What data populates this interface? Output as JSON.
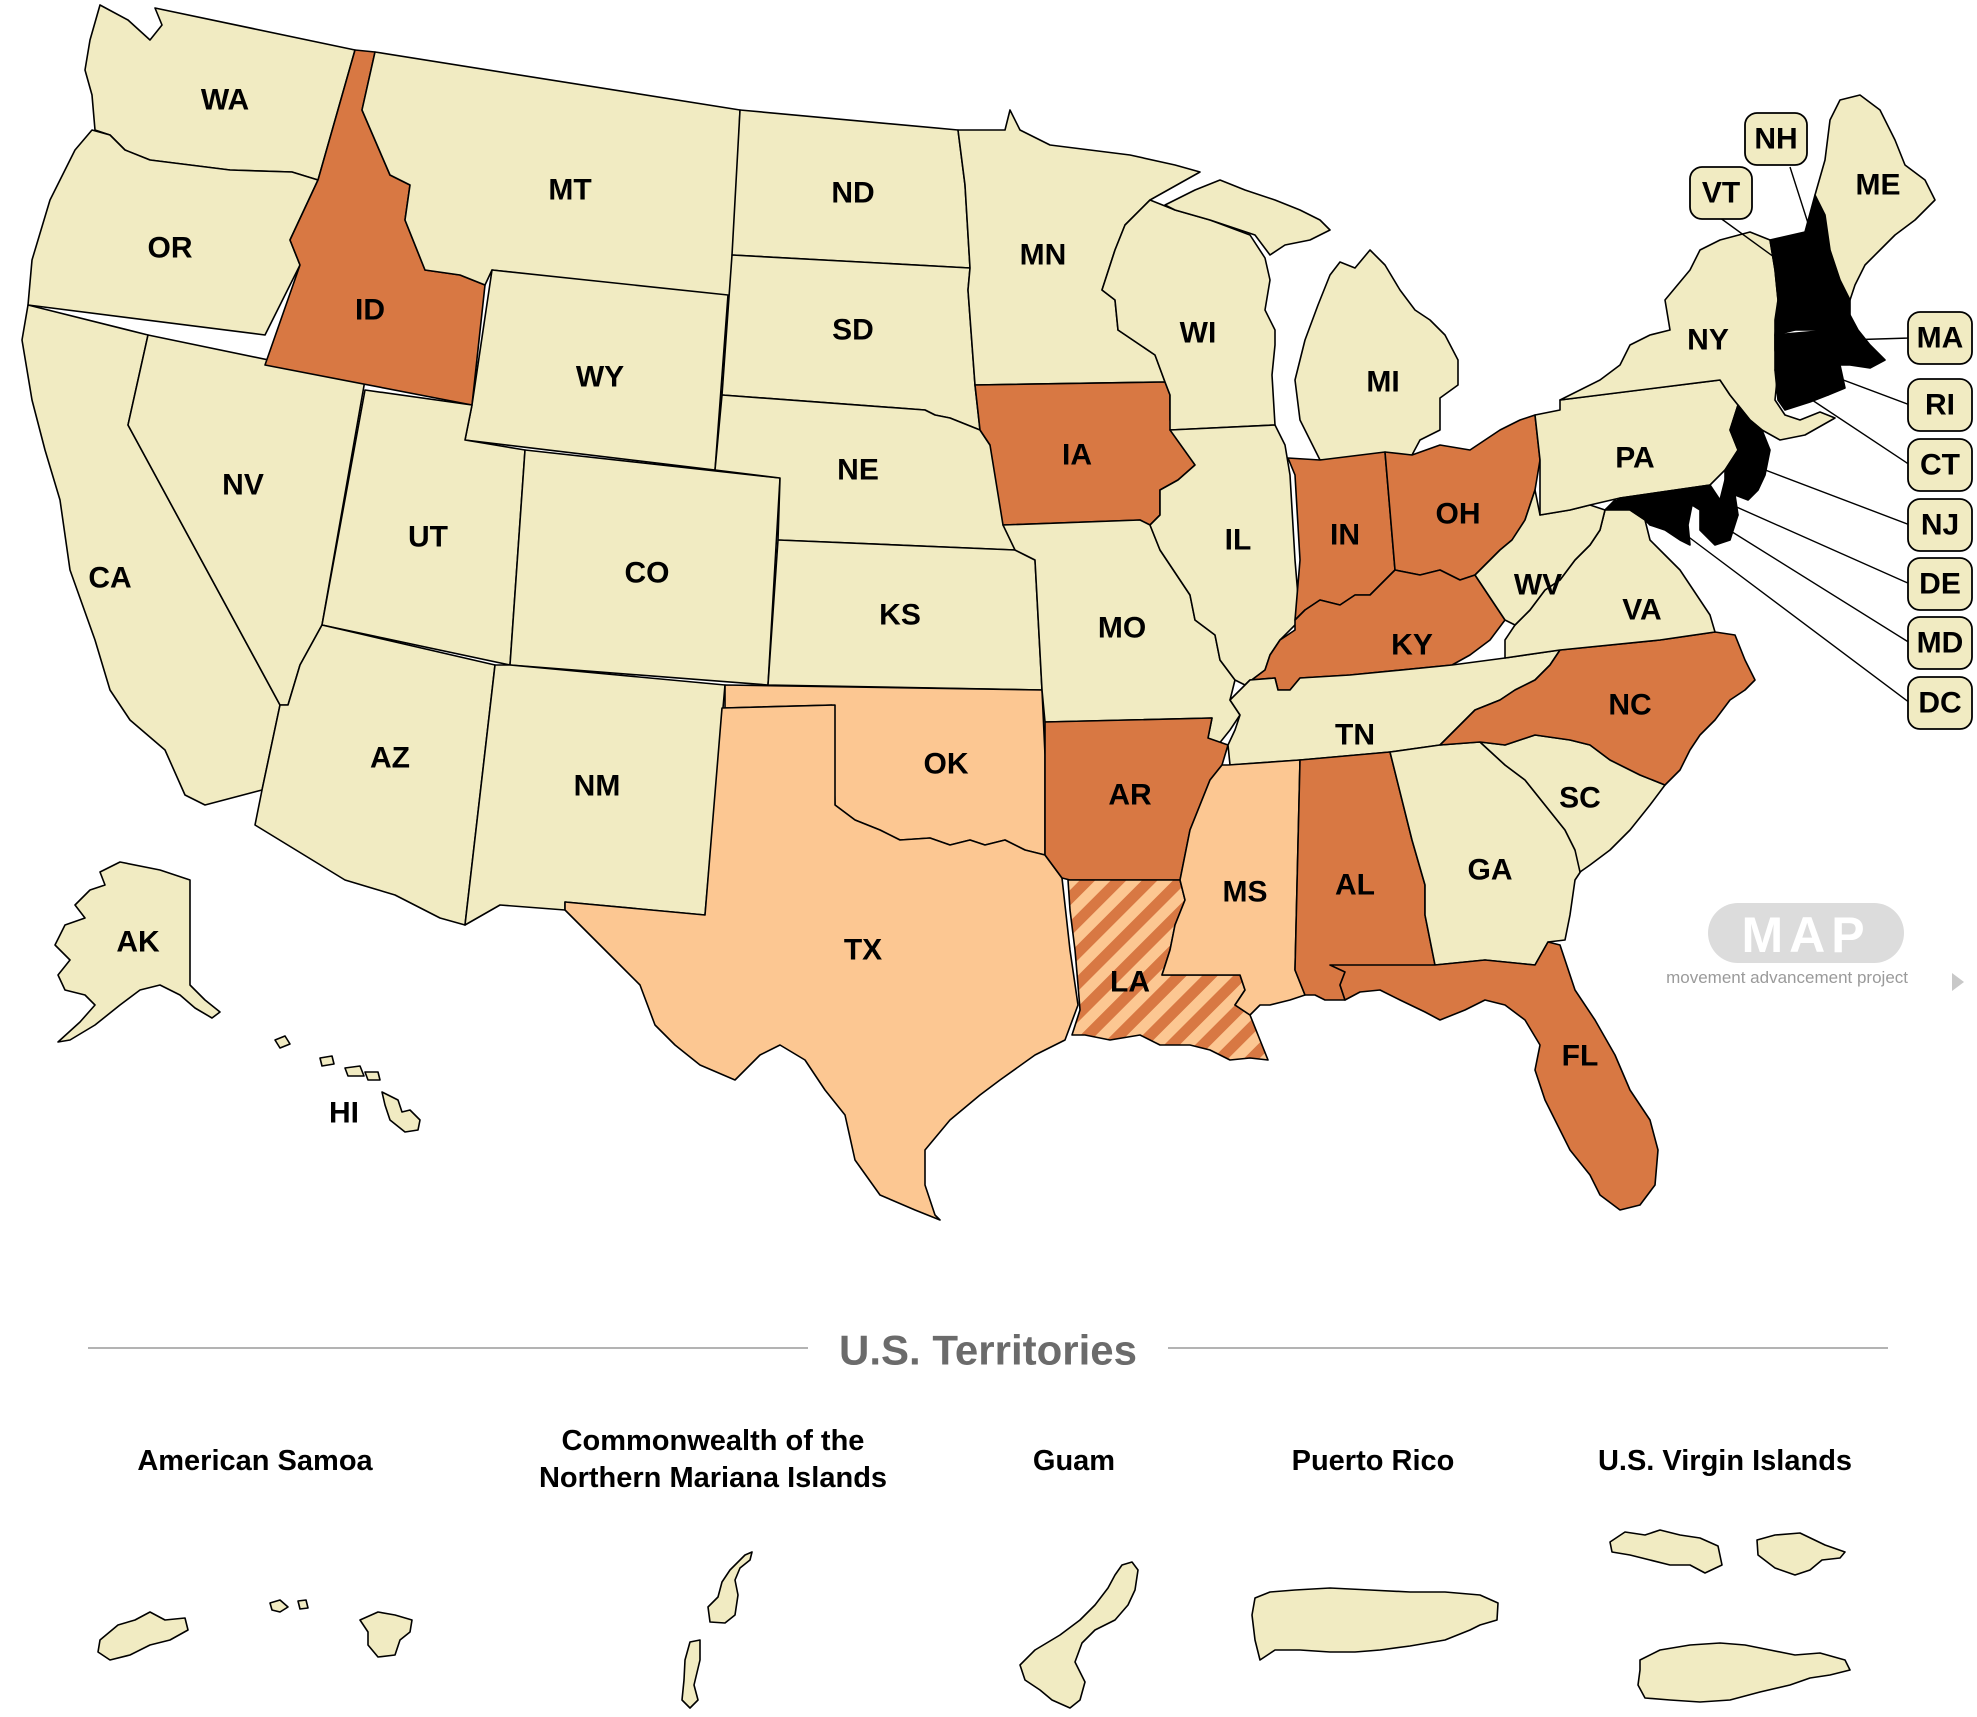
{
  "colors": {
    "none": "#f1ebc2",
    "light": "#fcc792",
    "dark": "#d87843",
    "border": "#000000",
    "rule": "#9a9a9a"
  },
  "states": {
    "WA": {
      "label": "WA",
      "category": "none"
    },
    "OR": {
      "label": "OR",
      "category": "none"
    },
    "CA": {
      "label": "CA",
      "category": "none"
    },
    "NV": {
      "label": "NV",
      "category": "none"
    },
    "ID": {
      "label": "ID",
      "category": "dark"
    },
    "MT": {
      "label": "MT",
      "category": "none"
    },
    "WY": {
      "label": "WY",
      "category": "none"
    },
    "UT": {
      "label": "UT",
      "category": "none"
    },
    "AZ": {
      "label": "AZ",
      "category": "none"
    },
    "CO": {
      "label": "CO",
      "category": "none"
    },
    "NM": {
      "label": "NM",
      "category": "none"
    },
    "ND": {
      "label": "ND",
      "category": "none"
    },
    "SD": {
      "label": "SD",
      "category": "none"
    },
    "NE": {
      "label": "NE",
      "category": "none"
    },
    "KS": {
      "label": "KS",
      "category": "none"
    },
    "OK": {
      "label": "OK",
      "category": "light"
    },
    "TX": {
      "label": "TX",
      "category": "light"
    },
    "MN": {
      "label": "MN",
      "category": "none"
    },
    "IA": {
      "label": "IA",
      "category": "dark"
    },
    "MO": {
      "label": "MO",
      "category": "none"
    },
    "AR": {
      "label": "AR",
      "category": "dark"
    },
    "LA": {
      "label": "LA",
      "category": "striped"
    },
    "WI": {
      "label": "WI",
      "category": "none"
    },
    "IL": {
      "label": "IL",
      "category": "none"
    },
    "MI": {
      "label": "MI",
      "category": "none"
    },
    "IN": {
      "label": "IN",
      "category": "dark"
    },
    "OH": {
      "label": "OH",
      "category": "dark"
    },
    "KY": {
      "label": "KY",
      "category": "dark"
    },
    "TN": {
      "label": "TN",
      "category": "none"
    },
    "MS": {
      "label": "MS",
      "category": "light"
    },
    "AL": {
      "label": "AL",
      "category": "dark"
    },
    "GA": {
      "label": "GA",
      "category": "none"
    },
    "FL": {
      "label": "FL",
      "category": "dark"
    },
    "SC": {
      "label": "SC",
      "category": "none"
    },
    "NC": {
      "label": "NC",
      "category": "dark"
    },
    "VA": {
      "label": "VA",
      "category": "none"
    },
    "WV": {
      "label": "WV",
      "category": "none"
    },
    "PA": {
      "label": "PA",
      "category": "none"
    },
    "NY": {
      "label": "NY",
      "category": "none"
    },
    "ME": {
      "label": "ME",
      "category": "none"
    },
    "AK": {
      "label": "AK",
      "category": "none"
    },
    "HI": {
      "label": "HI",
      "category": "none"
    }
  },
  "callouts": [
    "NH",
    "VT",
    "MA",
    "RI",
    "CT",
    "NJ",
    "DE",
    "MD",
    "DC"
  ],
  "logo": {
    "mark": "MAP",
    "tagline": "movement advancement project"
  },
  "territories": {
    "title": "U.S. Territories",
    "american_samoa": "American Samoa",
    "cnmi_line1": "Commonwealth of the",
    "cnmi_line2": "Northern Mariana Islands",
    "guam": "Guam",
    "puerto_rico": "Puerto Rico",
    "usvi": "U.S. Virgin Islands"
  }
}
